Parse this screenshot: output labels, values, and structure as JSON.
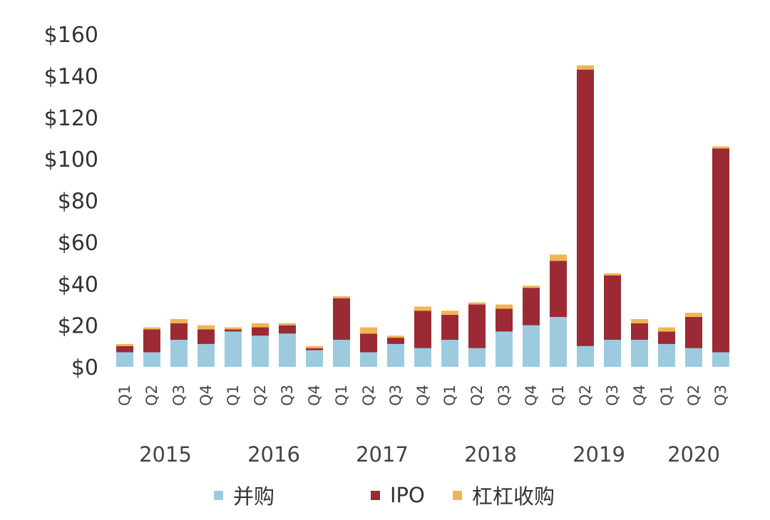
{
  "chart_data": {
    "type": "bar",
    "stacked": true,
    "categories": [
      "Q1",
      "Q2",
      "Q3",
      "Q4",
      "Q1",
      "Q2",
      "Q3",
      "Q4",
      "Q1",
      "Q2",
      "Q3",
      "Q4",
      "Q1",
      "Q2",
      "Q3",
      "Q4",
      "Q1",
      "Q2",
      "Q3",
      "Q4",
      "Q1",
      "Q2",
      "Q3"
    ],
    "years": [
      {
        "label": "2015",
        "start": 0,
        "end": 3
      },
      {
        "label": "2016",
        "start": 4,
        "end": 7
      },
      {
        "label": "2017",
        "start": 8,
        "end": 11
      },
      {
        "label": "2018",
        "start": 12,
        "end": 15
      },
      {
        "label": "2019",
        "start": 16,
        "end": 19
      },
      {
        "label": "2020",
        "start": 20,
        "end": 22
      }
    ],
    "series": [
      {
        "name": "并购",
        "color": "#9ccbe0",
        "values": [
          7,
          7,
          13,
          11,
          17,
          15,
          16,
          8,
          13,
          7,
          11,
          9,
          13,
          9,
          17,
          20,
          24,
          10,
          13,
          13,
          11,
          9,
          7
        ]
      },
      {
        "name": "IPO",
        "color": "#9b2a35",
        "values": [
          3,
          11,
          8,
          7,
          1,
          4,
          4,
          1,
          20,
          9,
          3,
          18,
          12,
          21,
          11,
          18,
          27,
          133,
          31,
          8,
          6,
          15,
          98
        ]
      },
      {
        "name": "杠杠收购",
        "color": "#f0b552",
        "values": [
          1,
          1,
          2,
          2,
          1,
          2,
          1,
          1,
          1,
          3,
          1,
          2,
          2,
          1,
          2,
          1,
          3,
          2,
          1,
          2,
          2,
          2,
          1
        ]
      }
    ],
    "yticks": [
      "$0",
      "$20",
      "$40",
      "$60",
      "$80",
      "$100",
      "$120",
      "$140",
      "$160"
    ],
    "ylim": [
      0,
      160
    ],
    "title": "",
    "xlabel": "",
    "ylabel": "",
    "grid": false,
    "legend_position": "bottom"
  }
}
